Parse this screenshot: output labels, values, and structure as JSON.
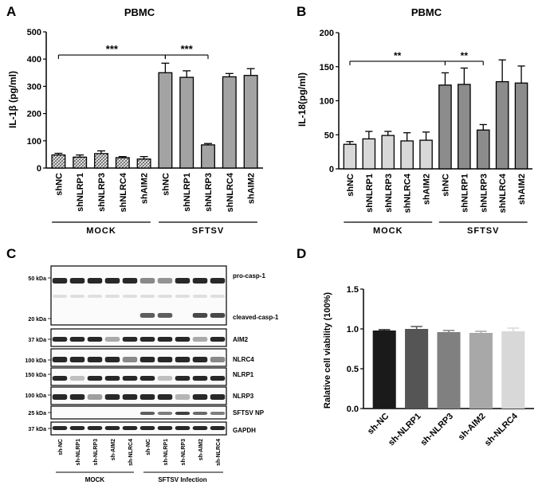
{
  "panels": {
    "A": "A",
    "B": "B",
    "C": "C",
    "D": "D"
  },
  "chart_data": [
    {
      "panel": "A",
      "type": "bar",
      "title": "PBMC",
      "ylabel": "IL-1β (pg/ml)",
      "ylim": [
        0,
        500
      ],
      "yticks": [
        "0",
        "100",
        "200",
        "300",
        "400",
        "500"
      ],
      "categories": [
        "shNC",
        "shNLRP1",
        "shNLRP3",
        "shNLRC4",
        "shAIM2",
        "shNC",
        "shNLRP1",
        "shNLRP3",
        "shNLRC4",
        "shAIM2"
      ],
      "values": [
        48,
        40,
        53,
        38,
        33,
        350,
        333,
        85,
        335,
        340
      ],
      "errors": [
        6,
        8,
        10,
        4,
        9,
        35,
        24,
        5,
        12,
        25
      ],
      "groups": [
        {
          "label": "MOCK",
          "from": 0,
          "to": 4
        },
        {
          "label": "SFTSV",
          "from": 5,
          "to": 9
        }
      ],
      "significance": [
        {
          "label": "***",
          "from": 0,
          "to": 5,
          "y": 415
        },
        {
          "label": "***",
          "from": 5,
          "to": 7,
          "y": 415
        }
      ],
      "fill": "hatched-light + dark-grey"
    },
    {
      "panel": "B",
      "type": "bar",
      "title": "PBMC",
      "ylabel": "IL-18(pg/ml)",
      "ylim": [
        0,
        200
      ],
      "yticks": [
        "0",
        "50",
        "100",
        "150",
        "200"
      ],
      "categories": [
        "shNC",
        "shNLRP1",
        "shNLRP3",
        "shNLRC4",
        "shAIM2",
        "shNC",
        "shNLRP1",
        "shNLRP3",
        "shNLRC4",
        "shAIM2"
      ],
      "values": [
        36,
        44,
        49,
        41,
        42,
        123,
        124,
        57,
        128,
        126
      ],
      "errors": [
        4,
        11,
        6,
        12,
        12,
        18,
        24,
        8,
        32,
        25
      ],
      "groups": [
        {
          "label": "MOCK",
          "from": 0,
          "to": 4
        },
        {
          "label": "SFTSV",
          "from": 5,
          "to": 9
        }
      ],
      "significance": [
        {
          "label": "**",
          "from": 0,
          "to": 5,
          "y": 158
        },
        {
          "label": "**",
          "from": 5,
          "to": 7,
          "y": 158
        }
      ],
      "colors": [
        "#d8d8d8",
        "#8c8c8c"
      ]
    },
    {
      "panel": "D",
      "type": "bar",
      "ylabel": "Ralative cell viability (100%)",
      "ylim": [
        0,
        1.5
      ],
      "yticks": [
        "0.0",
        "0.5",
        "1.0",
        "1.5"
      ],
      "categories": [
        "sh-NC",
        "sh-NLRP1",
        "sh-NLRP3",
        "sh-AIM2",
        "sh-NLRC4"
      ],
      "values": [
        0.98,
        1.0,
        0.96,
        0.95,
        0.97
      ],
      "errors": [
        0.01,
        0.03,
        0.02,
        0.02,
        0.04
      ],
      "colors": [
        "#1a1a1a",
        "#555555",
        "#808080",
        "#a8a8a8",
        "#d8d8d8"
      ]
    }
  ],
  "blot": {
    "mw_labels": [
      "50 kDa",
      "20 kDa",
      "37 kDa",
      "100 kDa",
      "150 kDa",
      "100 kDa",
      "25 kDa",
      "37 kDa"
    ],
    "protein_labels": [
      "pro-casp-1",
      "cleaved-casp-1",
      "AIM2",
      "NLRC4",
      "NLRP1",
      "NLRP3",
      "SFTSV NP",
      "GAPDH"
    ],
    "lanes": [
      "sh-NC",
      "sh-NLRP1",
      "sh-NLRP3",
      "sh-AIM2",
      "sh-NLRC4",
      "sh-NC",
      "sh-NLRP1",
      "sh-NLRP3",
      "sh-AIM2",
      "sh-NLRC4"
    ],
    "groups": [
      "MOCK",
      "SFTSV Infection"
    ]
  }
}
